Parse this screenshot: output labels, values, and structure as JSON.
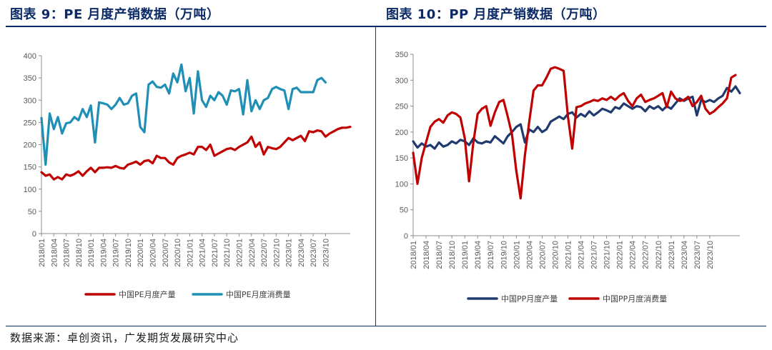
{
  "titles": {
    "left": "图表 9：PE 月度产销数据（万吨）",
    "right": "图表 10：PP 月度产销数据（万吨）"
  },
  "source": "数据来源：卓创资讯，广发期货发展研究中心",
  "chart_data": [
    {
      "type": "line",
      "yticks": [
        "0",
        "50",
        "100",
        "150",
        "200",
        "250",
        "300",
        "350",
        "400"
      ],
      "ylim": [
        0,
        400
      ],
      "xticks": [
        "2018/01",
        "2018/04",
        "2018/07",
        "2018/10",
        "2019/01",
        "2019/04",
        "2019/07",
        "2019/10",
        "2020/01",
        "2020/04",
        "2020/07",
        "2020/10",
        "2021/01",
        "2021/04",
        "2021/07",
        "2021/10",
        "2022/01",
        "2022/04",
        "2022/07",
        "2022/10",
        "2023/01",
        "2023/04",
        "2023/07",
        "2023/10"
      ],
      "x_start": "2018/01",
      "series": [
        {
          "name": "中国PE月度产量",
          "color": "#c00000",
          "values": [
            138,
            130,
            133,
            122,
            127,
            122,
            133,
            130,
            134,
            140,
            130,
            140,
            148,
            138,
            148,
            148,
            149,
            148,
            152,
            148,
            146,
            155,
            158,
            162,
            155,
            163,
            165,
            158,
            175,
            170,
            170,
            160,
            155,
            170,
            175,
            178,
            182,
            178,
            195,
            195,
            188,
            200,
            175,
            180,
            185,
            190,
            192,
            188,
            195,
            200,
            205,
            218,
            195,
            205,
            178,
            195,
            192,
            190,
            195,
            205,
            215,
            210,
            215,
            220,
            208,
            230,
            228,
            232,
            230,
            218,
            225,
            230,
            235,
            238,
            238,
            240
          ]
        },
        {
          "name": "中国PE月度消费量",
          "color": "#1f8fb5",
          "values": [
            260,
            155,
            270,
            235,
            262,
            225,
            248,
            250,
            262,
            255,
            280,
            262,
            288,
            205,
            295,
            293,
            290,
            280,
            290,
            305,
            290,
            293,
            310,
            315,
            240,
            228,
            335,
            342,
            330,
            328,
            335,
            315,
            360,
            340,
            380,
            320,
            350,
            270,
            365,
            300,
            285,
            310,
            300,
            318,
            310,
            290,
            322,
            320,
            325,
            268,
            345,
            275,
            300,
            280,
            300,
            305,
            325,
            330,
            325,
            322,
            280,
            325,
            328,
            318,
            318,
            318,
            318,
            345,
            350,
            340
          ]
        }
      ]
    },
    {
      "type": "line",
      "yticks": [
        "0",
        "50",
        "100",
        "150",
        "200",
        "250",
        "300",
        "350"
      ],
      "ylim": [
        0,
        350
      ],
      "xticks": [
        "2018/01",
        "2018/04",
        "2018/07",
        "2018/10",
        "2019/01",
        "2019/04",
        "2019/07",
        "2019/10",
        "2020/01",
        "2020/04",
        "2020/07",
        "2020/10",
        "2021/01",
        "2021/04",
        "2021/07",
        "2021/10",
        "2022/01",
        "2022/04",
        "2022/07",
        "2022/10",
        "2023/01",
        "2023/04",
        "2023/07",
        "2023/10"
      ],
      "x_start": "2018/01",
      "series": [
        {
          "name": "中国PP月度产量",
          "color": "#1f3a6e",
          "values": [
            182,
            170,
            178,
            172,
            175,
            168,
            180,
            172,
            175,
            182,
            178,
            185,
            182,
            175,
            188,
            180,
            178,
            182,
            180,
            192,
            185,
            178,
            192,
            200,
            210,
            215,
            180,
            205,
            200,
            210,
            200,
            205,
            220,
            225,
            230,
            225,
            235,
            238,
            228,
            235,
            230,
            240,
            232,
            238,
            245,
            242,
            238,
            248,
            245,
            255,
            250,
            245,
            250,
            248,
            240,
            250,
            245,
            250,
            242,
            250,
            245,
            255,
            265,
            260,
            265,
            268,
            232,
            262,
            258,
            262,
            258,
            265,
            270,
            285,
            278,
            288,
            275
          ]
        },
        {
          "name": "中国PP月度消费量",
          "color": "#c00000",
          "values": [
            160,
            100,
            150,
            180,
            210,
            220,
            225,
            218,
            232,
            238,
            235,
            228,
            188,
            105,
            180,
            235,
            245,
            250,
            212,
            238,
            258,
            262,
            230,
            195,
            125,
            72,
            155,
            220,
            280,
            290,
            290,
            305,
            322,
            325,
            322,
            318,
            230,
            168,
            248,
            250,
            255,
            258,
            262,
            260,
            265,
            262,
            268,
            262,
            270,
            275,
            260,
            250,
            265,
            272,
            258,
            262,
            265,
            270,
            275,
            248,
            278,
            265,
            260,
            262,
            268,
            250,
            258,
            270,
            245,
            235,
            240,
            248,
            255,
            265,
            305,
            310
          ]
        }
      ]
    }
  ]
}
